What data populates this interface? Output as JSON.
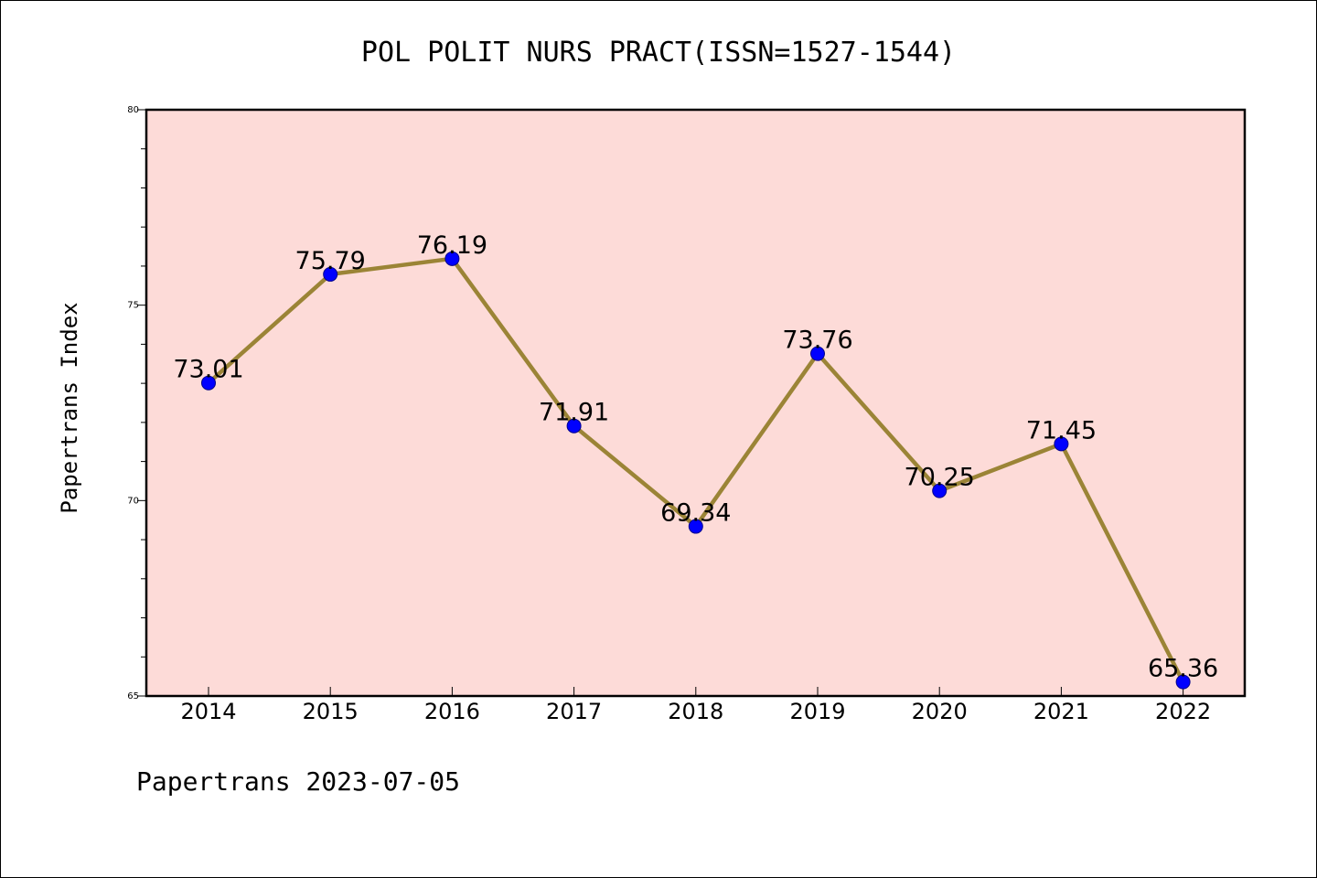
{
  "chart_data": {
    "type": "line",
    "title": "POL POLIT NURS PRACT(ISSN=1527-1544)",
    "xlabel": "",
    "ylabel": "Papertrans Index",
    "categories": [
      "2014",
      "2015",
      "2016",
      "2017",
      "2018",
      "2019",
      "2020",
      "2021",
      "2022"
    ],
    "series": [
      {
        "values": [
          73.01,
          75.79,
          76.19,
          71.91,
          69.34,
          73.76,
          70.25,
          71.45,
          65.36
        ],
        "data_labels": [
          "73.01",
          "75.79",
          "76.19",
          "71.91",
          "69.34",
          "73.76",
          "70.25",
          "71.45",
          "65.36"
        ]
      }
    ],
    "ylim": [
      65,
      80
    ],
    "y_ticks": [
      "65",
      "70",
      "75",
      "80"
    ],
    "y_minor_step": 1,
    "grid": false,
    "legend": "none",
    "colors": {
      "plot_background": "#fddbd8",
      "line": "#9b8436",
      "marker": "#0000ff",
      "marker_edge": "#00008b",
      "axes": "#000000"
    }
  },
  "footer": {
    "text": "Papertrans 2023-07-05"
  }
}
